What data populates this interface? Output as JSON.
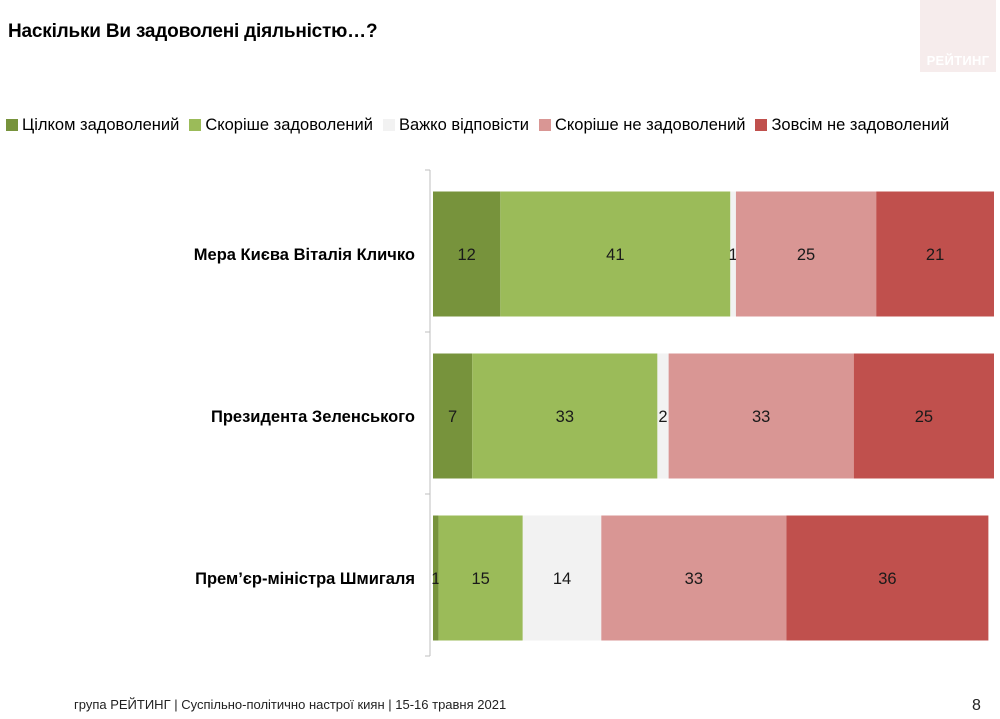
{
  "title": "Наскільки Ви задоволені діяльністю…?",
  "logo_text": "РЕЙТИНГ",
  "footer": "група РЕЙТИНГ  | Суспільно-політично настрої киян  | 15-16 травня 2021",
  "page_number": "8",
  "chart_data": {
    "type": "bar",
    "orientation": "horizontal",
    "stacked": true,
    "title": "Наскільки Ви задоволені діяльністю…?",
    "categories": [
      "Мера Києва Віталія Кличко",
      "Президента Зеленського",
      "Прем’єр-міністра Шмигаля"
    ],
    "series": [
      {
        "name": "Цілком задоволений",
        "color": "#77933c",
        "values": [
          12,
          7,
          1
        ]
      },
      {
        "name": "Скоріше задоволений",
        "color": "#9bbb59",
        "values": [
          41,
          33,
          15
        ]
      },
      {
        "name": "Важко відповісти",
        "color": "#f2f2f2",
        "values": [
          1,
          2,
          14
        ]
      },
      {
        "name": "Скоріше не задоволений",
        "color": "#d99694",
        "values": [
          25,
          33,
          33
        ]
      },
      {
        "name": "Зовсім не задоволений",
        "color": "#c0504d",
        "values": [
          21,
          25,
          36
        ]
      }
    ],
    "xlim": [
      0,
      100
    ],
    "legend_position": "top",
    "grid": false
  }
}
